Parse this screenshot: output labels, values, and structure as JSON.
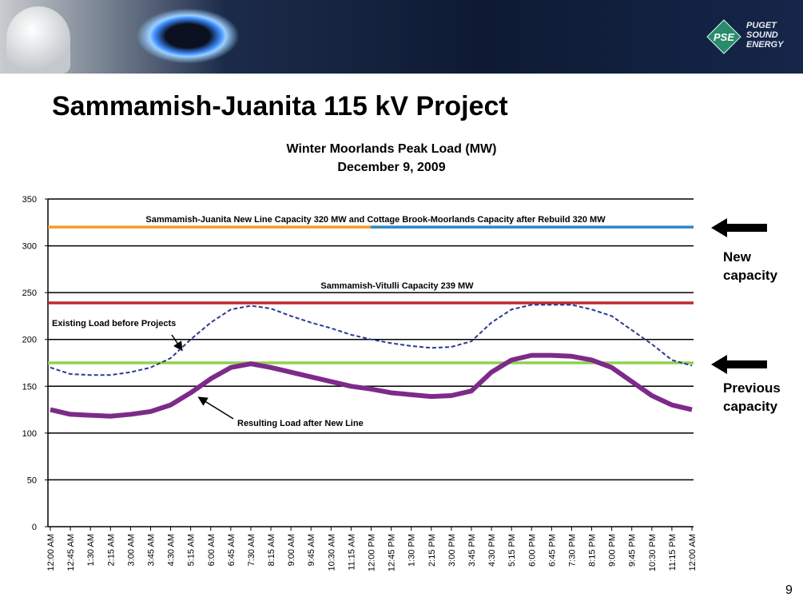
{
  "header": {
    "logo": "PSE",
    "logo_text": "PUGET SOUND ENERGY"
  },
  "title": "Sammamish-Juanita 115 kV Project",
  "page_number": 9,
  "side_labels": [
    "New capacity",
    "Previous capacity"
  ],
  "chart_data": {
    "type": "line",
    "title": "Winter Moorlands Peak Load (MW)",
    "subtitle": "December 9, 2009",
    "categories": [
      "12:00 AM",
      "12:45 AM",
      "1:30 AM",
      "2:15 AM",
      "3:00 AM",
      "3:45 AM",
      "4:30 AM",
      "5:15 AM",
      "6:00 AM",
      "6:45 AM",
      "7:30 AM",
      "8:15 AM",
      "9:00 AM",
      "9:45 AM",
      "10:30 AM",
      "11:15 AM",
      "12:00 PM",
      "12:45 PM",
      "1:30 PM",
      "2:15 PM",
      "3:00 PM",
      "3:45 PM",
      "4:30 PM",
      "5:15 PM",
      "6:00 PM",
      "6:45 PM",
      "7:30 PM",
      "8:15 PM",
      "9:00 PM",
      "9:45 PM",
      "10:30 PM",
      "11:15 PM",
      "12:00 AM"
    ],
    "series": [
      {
        "name": "Existing Load before Projects",
        "color": "#2b3990",
        "dashed": true,
        "values": [
          170,
          163,
          162,
          162,
          165,
          170,
          180,
          200,
          218,
          232,
          236,
          233,
          225,
          218,
          212,
          205,
          200,
          196,
          193,
          191,
          192,
          198,
          218,
          232,
          237,
          237,
          237,
          232,
          225,
          210,
          195,
          178,
          172
        ]
      },
      {
        "name": "Resulting Load after New Line",
        "color": "#7d2a8a",
        "dashed": false,
        "values": [
          125,
          120,
          119,
          118,
          120,
          123,
          130,
          143,
          158,
          170,
          174,
          170,
          165,
          160,
          155,
          150,
          147,
          143,
          141,
          139,
          140,
          145,
          165,
          178,
          183,
          183,
          182,
          178,
          170,
          155,
          140,
          130,
          125
        ]
      }
    ],
    "reference_lines": [
      {
        "value": 320,
        "colors": [
          "#f39c2c",
          "#2e86c8"
        ]
      },
      {
        "value": 239,
        "colors": [
          "#c0282d"
        ]
      },
      {
        "value": 175,
        "colors": [
          "#8fd14f"
        ]
      }
    ],
    "annotations": [
      "Sammamish-Juanita New Line Capacity 320 MW and Cottage Brook-Moorlands Capacity after Rebuild 320 MW",
      "Sammamish-Vitulli Capacity 239 MW"
    ],
    "ylim": [
      0,
      350
    ],
    "yticks": [
      0,
      50,
      100,
      150,
      200,
      250,
      300,
      350
    ],
    "grid": true
  }
}
